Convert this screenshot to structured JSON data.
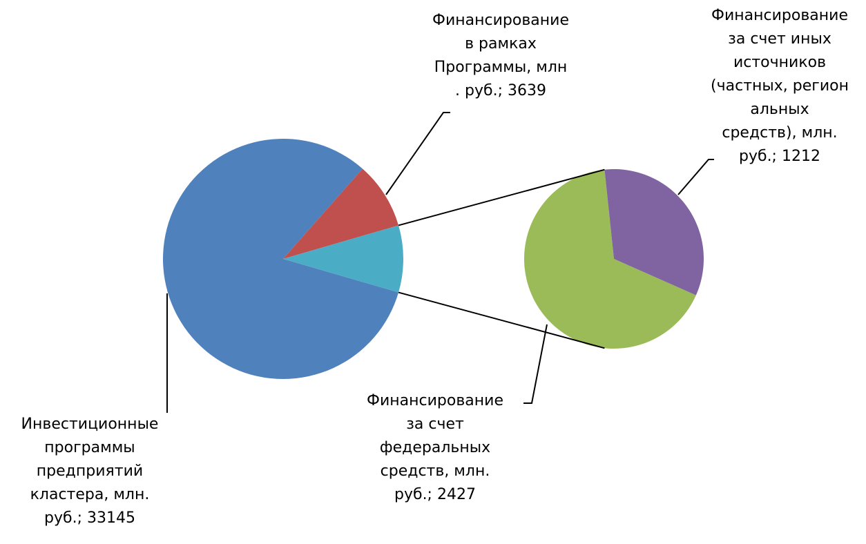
{
  "chart_data": {
    "type": "pie",
    "subtype": "pie-of-pie",
    "slices": [
      {
        "label": "Инвестиционные\nпрограммы\nпредприятий\nкластера, млн.\nруб.; 33145",
        "value": 33145,
        "color": "#4F81BD"
      },
      {
        "label": "Финансирование\nв рамках\nПрограммы, млн\n. руб.; 3639",
        "value": 3639,
        "color": "#C0504D"
      },
      {
        "label": "Финансирование\nза счет\nфедеральных\nсредств, млн.\nруб.; 2427",
        "value": 2427,
        "color": "#9BBB59"
      },
      {
        "label": "Финансирование\nза счет иных\nисточников\n(частных, регион\nальных\nсредств), млн.\nруб.; 1212",
        "value": 1212,
        "color": "#8064A2"
      }
    ],
    "secondary_group_color": "#4BACC6",
    "legend": "none"
  }
}
